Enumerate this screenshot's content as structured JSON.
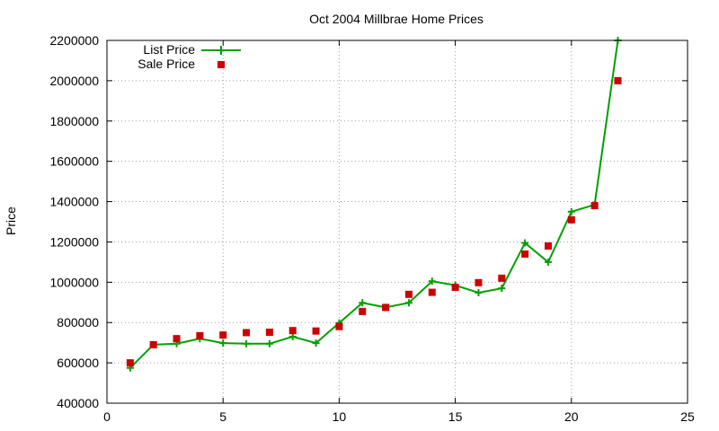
{
  "chart_data": {
    "type": "line",
    "title": "Oct 2004 Millbrae Home Prices",
    "xlabel": "",
    "ylabel": "Price",
    "xlim": [
      0,
      25
    ],
    "ylim": [
      400000,
      2200000
    ],
    "xticks": [
      0,
      5,
      10,
      15,
      20,
      25
    ],
    "yticks": [
      400000,
      600000,
      800000,
      1000000,
      1200000,
      1400000,
      1600000,
      1800000,
      2000000,
      2200000
    ],
    "grid": true,
    "legend_position": "top-left",
    "series": [
      {
        "name": "List Price",
        "style": "line-with-plus-markers",
        "color": "#00a000",
        "x": [
          1,
          2,
          3,
          4,
          5,
          6,
          7,
          8,
          9,
          10,
          11,
          12,
          13,
          14,
          15,
          16,
          17,
          18,
          19,
          20,
          21,
          22
        ],
        "y": [
          575000,
          690000,
          695000,
          720000,
          698000,
          695000,
          695000,
          730000,
          698000,
          798000,
          898000,
          875000,
          898000,
          1005000,
          985000,
          948000,
          970000,
          1195000,
          1100000,
          1350000,
          1385000,
          2200000
        ]
      },
      {
        "name": "Sale Price",
        "style": "square-markers",
        "color": "#cc0000",
        "x": [
          1,
          2,
          3,
          4,
          5,
          6,
          7,
          8,
          9,
          10,
          11,
          12,
          13,
          14,
          15,
          16,
          17,
          18,
          19,
          20,
          21,
          22
        ],
        "y": [
          600000,
          690000,
          720000,
          735000,
          738000,
          750000,
          752000,
          760000,
          758000,
          780000,
          855000,
          875000,
          940000,
          950000,
          975000,
          998000,
          1020000,
          1140000,
          1180000,
          1310000,
          1380000,
          2000000
        ]
      }
    ]
  }
}
